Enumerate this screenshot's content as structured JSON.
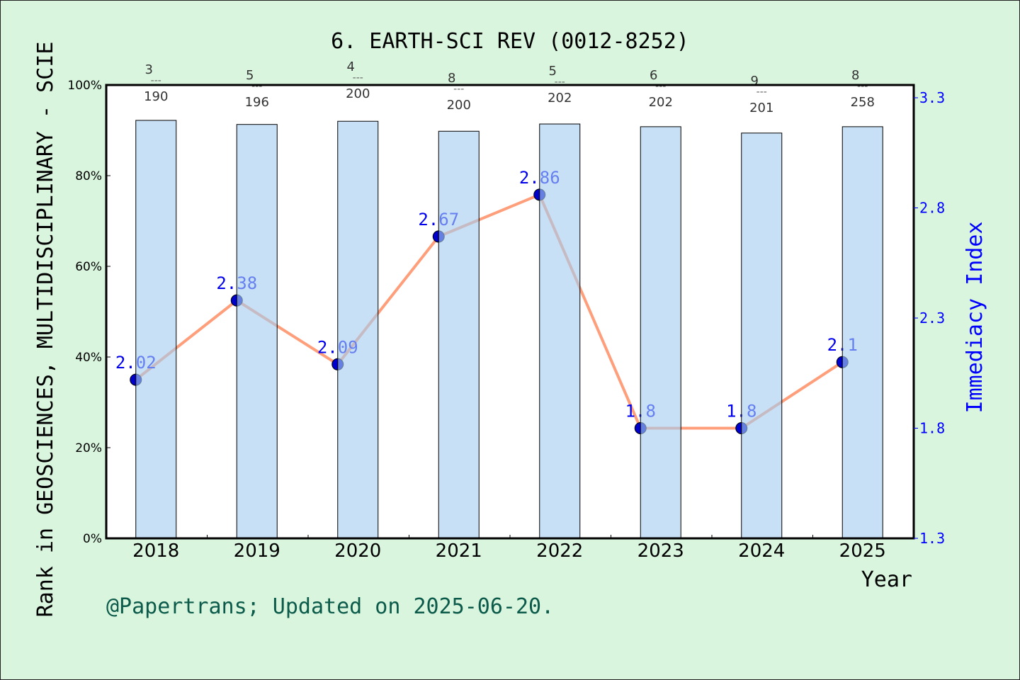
{
  "chart_data": {
    "type": "bar+line",
    "title": "6. EARTH-SCI REV (0012-8252)",
    "xlabel": "Year",
    "ylabel_left": "Rank in GEOSCIENCES, MULTIDISCIPLINARY - SCIE",
    "ylabel_right": "Immediacy Index",
    "categories": [
      "2018",
      "2019",
      "2020",
      "2021",
      "2022",
      "2023",
      "2024",
      "2025"
    ],
    "left_axis": {
      "ylim": [
        0,
        100
      ],
      "ticks": [
        "0%",
        "20%",
        "40%",
        "60%",
        "80%",
        "100%"
      ]
    },
    "right_axis": {
      "ylim": [
        1.3,
        3.3
      ],
      "ticks": [
        "1.3",
        "1.8",
        "2.3",
        "2.8",
        "3.3"
      ]
    },
    "bar_values_percent": [
      92.2,
      91.3,
      92.0,
      89.8,
      91.4,
      90.8,
      89.4,
      90.8
    ],
    "rank_labels": [
      {
        "rank": "3",
        "total": "190"
      },
      {
        "rank": "5",
        "total": "196"
      },
      {
        "rank": "4",
        "total": "200"
      },
      {
        "rank": "8",
        "total": "200"
      },
      {
        "rank": "5",
        "total": "202"
      },
      {
        "rank": "6",
        "total": "202"
      },
      {
        "rank": "9",
        "total": "201"
      },
      {
        "rank": "8",
        "total": "258"
      }
    ],
    "immediacy_index": [
      2.02,
      2.38,
      2.09,
      2.67,
      2.86,
      1.8,
      1.8,
      2.1
    ],
    "immediacy_labels": [
      "2.02",
      "2.38",
      "2.09",
      "2.67",
      "2.86",
      "1.8",
      "1.8",
      "2.1"
    ],
    "grid": false,
    "colors": {
      "background": "#d9f5de",
      "bar": "#c5e0f5",
      "line": "#ff9e7a",
      "marker": "#0000cc",
      "right_axis": "#0000ff",
      "footer": "#0b5a4a"
    }
  },
  "footer": "@Papertrans; Updated on 2025-06-20."
}
